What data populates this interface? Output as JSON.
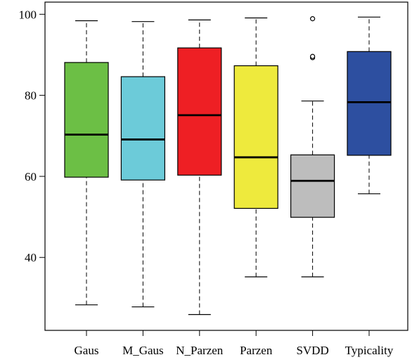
{
  "chart_data": {
    "type": "boxplot",
    "title": "",
    "xlabel": "",
    "ylabel": "",
    "ylim": [
      22,
      103
    ],
    "yticks": [
      40,
      60,
      80,
      100
    ],
    "grid": false,
    "categories": [
      "Gaus",
      "M_Gaus",
      "N_Parzen",
      "Parzen",
      "SVDD",
      "Typicality"
    ],
    "boxes": [
      {
        "name": "Gaus",
        "color": "#6cbf45",
        "whisker_low": 28.3,
        "q1": 59.8,
        "median": 70.3,
        "q3": 88.1,
        "whisker_high": 98.4,
        "outliers": []
      },
      {
        "name": "M_Gaus",
        "color": "#6ccbd9",
        "whisker_low": 27.8,
        "q1": 59.1,
        "median": 69.1,
        "q3": 84.6,
        "whisker_high": 98.2,
        "outliers": []
      },
      {
        "name": "N_Parzen",
        "color": "#ee1f24",
        "whisker_low": 25.9,
        "q1": 60.3,
        "median": 75.1,
        "q3": 91.7,
        "whisker_high": 98.6,
        "outliers": []
      },
      {
        "name": "Parzen",
        "color": "#eeea3d",
        "whisker_low": 35.2,
        "q1": 52.1,
        "median": 64.7,
        "q3": 87.3,
        "whisker_high": 99.1,
        "outliers": []
      },
      {
        "name": "SVDD",
        "color": "#bdbdbd",
        "whisker_low": 35.2,
        "q1": 49.9,
        "median": 58.9,
        "q3": 65.3,
        "whisker_high": 78.6,
        "outliers": [
          89.3,
          89.6,
          98.9
        ]
      },
      {
        "name": "Typicality",
        "color": "#2d4fa0",
        "whisker_low": 55.7,
        "q1": 65.2,
        "median": 78.3,
        "q3": 90.8,
        "whisker_high": 99.3,
        "outliers": []
      }
    ]
  }
}
